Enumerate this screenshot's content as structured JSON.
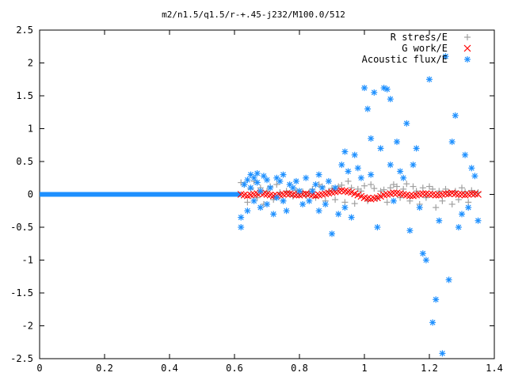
{
  "chart_data": {
    "type": "scatter",
    "title": "m2/n1.5/q1.5/r-+.45-j232/M100.0/512",
    "xlabel": "",
    "ylabel": "",
    "xlim": [
      0,
      1.4
    ],
    "ylim": [
      -2.5,
      2.5
    ],
    "x_ticks": [
      "0",
      "0.2",
      "0.4",
      "0.6",
      "0.8",
      "1",
      "1.2",
      "1.4"
    ],
    "y_ticks": [
      "2.5",
      "2",
      "1.5",
      "1",
      "0.5",
      "0",
      "-0.5",
      "-1",
      "-1.5",
      "-2",
      "-2.5"
    ],
    "grid": false,
    "legend_position": "top-right",
    "series": [
      {
        "name": "R stress/E",
        "marker": "plus",
        "color": "#a0a0a0",
        "x": [
          0.62,
          0.63,
          0.64,
          0.65,
          0.66,
          0.67,
          0.68,
          0.69,
          0.7,
          0.71,
          0.72,
          0.73,
          0.74,
          0.75,
          0.76,
          0.77,
          0.78,
          0.79,
          0.8,
          0.81,
          0.82,
          0.83,
          0.84,
          0.85,
          0.86,
          0.87,
          0.88,
          0.89,
          0.9,
          0.91,
          0.92,
          0.93,
          0.94,
          0.95,
          0.96,
          0.97,
          0.98,
          0.99,
          1.0,
          1.01,
          1.02,
          1.03,
          1.04,
          1.05,
          1.06,
          1.07,
          1.08,
          1.09,
          1.1,
          1.11,
          1.12,
          1.13,
          1.14,
          1.15,
          1.16,
          1.17,
          1.18,
          1.19,
          1.2,
          1.21,
          1.22,
          1.23,
          1.24,
          1.25,
          1.26,
          1.27,
          1.28,
          1.29,
          1.3,
          1.31,
          1.32,
          1.33,
          1.34,
          1.35
        ],
        "y": [
          0.18,
          0.15,
          -0.12,
          0.08,
          0.2,
          -0.05,
          0.1,
          -0.15,
          0.05,
          0.12,
          -0.08,
          0.15,
          0.03,
          -0.1,
          0.05,
          0.02,
          -0.03,
          0.06,
          0.01,
          0.04,
          -0.02,
          0.03,
          0.08,
          -0.05,
          0.15,
          0.12,
          -0.1,
          0.05,
          0.09,
          -0.08,
          0.12,
          0.14,
          -0.12,
          0.2,
          0.1,
          -0.14,
          0.08,
          0.05,
          0.13,
          -0.1,
          0.15,
          0.09,
          -0.06,
          0.05,
          0.07,
          -0.12,
          0.1,
          0.15,
          0.12,
          -0.05,
          0.08,
          0.16,
          -0.1,
          0.12,
          0.05,
          -0.15,
          0.1,
          -0.05,
          0.12,
          0.08,
          -0.2,
          0.05,
          -0.1,
          0.08,
          0.03,
          -0.15,
          0.05,
          -0.08,
          0.1,
          0.04,
          -0.12,
          0.06,
          0.02,
          0.03
        ]
      },
      {
        "name": "G work/E",
        "marker": "cross",
        "color": "#ff0000",
        "x": [
          0.62,
          0.63,
          0.64,
          0.65,
          0.66,
          0.67,
          0.68,
          0.69,
          0.7,
          0.71,
          0.72,
          0.73,
          0.74,
          0.75,
          0.76,
          0.77,
          0.78,
          0.79,
          0.8,
          0.81,
          0.82,
          0.83,
          0.84,
          0.85,
          0.86,
          0.87,
          0.88,
          0.89,
          0.9,
          0.91,
          0.92,
          0.93,
          0.94,
          0.95,
          0.96,
          0.97,
          0.98,
          0.99,
          1.0,
          1.01,
          1.02,
          1.03,
          1.04,
          1.05,
          1.06,
          1.07,
          1.08,
          1.09,
          1.1,
          1.11,
          1.12,
          1.13,
          1.14,
          1.15,
          1.16,
          1.17,
          1.18,
          1.19,
          1.2,
          1.21,
          1.22,
          1.23,
          1.24,
          1.25,
          1.26,
          1.27,
          1.28,
          1.29,
          1.3,
          1.31,
          1.32,
          1.33,
          1.34,
          1.35
        ],
        "y": [
          0.0,
          -0.01,
          -0.02,
          -0.01,
          0.0,
          0.01,
          0.02,
          0.01,
          0.0,
          -0.01,
          -0.02,
          -0.02,
          -0.01,
          0.0,
          0.01,
          0.01,
          0.0,
          -0.01,
          -0.01,
          0.0,
          0.01,
          0.0,
          -0.01,
          -0.02,
          -0.01,
          0.0,
          0.01,
          0.02,
          0.03,
          0.04,
          0.05,
          0.06,
          0.05,
          0.04,
          0.03,
          0.01,
          -0.01,
          -0.03,
          -0.05,
          -0.06,
          -0.07,
          -0.06,
          -0.05,
          -0.03,
          -0.01,
          0.0,
          0.01,
          0.02,
          0.02,
          0.01,
          0.0,
          -0.01,
          -0.02,
          -0.02,
          -0.01,
          0.0,
          0.01,
          0.01,
          0.0,
          0.0,
          -0.01,
          -0.01,
          0.0,
          0.01,
          0.01,
          0.02,
          0.01,
          0.0,
          0.0,
          -0.01,
          0.0,
          0.01,
          0.01,
          0.0
        ]
      },
      {
        "name": "Acoustic flux/E",
        "marker": "star",
        "color": "#1e90ff",
        "x": [
          0.62,
          0.62,
          0.63,
          0.64,
          0.64,
          0.65,
          0.65,
          0.66,
          0.66,
          0.67,
          0.67,
          0.68,
          0.68,
          0.69,
          0.7,
          0.7,
          0.71,
          0.72,
          0.73,
          0.73,
          0.74,
          0.75,
          0.75,
          0.76,
          0.77,
          0.78,
          0.79,
          0.8,
          0.81,
          0.82,
          0.83,
          0.84,
          0.85,
          0.86,
          0.86,
          0.87,
          0.88,
          0.89,
          0.9,
          0.91,
          0.92,
          0.93,
          0.94,
          0.94,
          0.95,
          0.96,
          0.97,
          0.98,
          0.99,
          1.0,
          1.01,
          1.02,
          1.02,
          1.03,
          1.04,
          1.05,
          1.06,
          1.07,
          1.08,
          1.08,
          1.09,
          1.1,
          1.11,
          1.12,
          1.13,
          1.14,
          1.15,
          1.16,
          1.17,
          1.18,
          1.19,
          1.2,
          1.21,
          1.22,
          1.23,
          1.24,
          1.25,
          1.26,
          1.27,
          1.28,
          1.29,
          1.3,
          1.31,
          1.32,
          1.33,
          1.34,
          1.35
        ],
        "y": [
          -0.5,
          -0.35,
          0.15,
          0.22,
          -0.25,
          0.1,
          0.3,
          0.25,
          -0.1,
          0.18,
          0.32,
          -0.2,
          0.05,
          0.28,
          -0.15,
          0.22,
          0.1,
          -0.3,
          0.25,
          -0.05,
          0.2,
          0.3,
          -0.1,
          -0.25,
          0.15,
          0.1,
          0.2,
          0.05,
          -0.15,
          0.25,
          -0.1,
          0.05,
          0.15,
          -0.25,
          0.3,
          0.1,
          -0.15,
          0.2,
          -0.6,
          0.1,
          -0.3,
          0.45,
          -0.2,
          0.65,
          0.35,
          -0.35,
          0.6,
          0.4,
          0.25,
          1.62,
          1.3,
          0.85,
          0.3,
          1.55,
          -0.5,
          0.7,
          1.62,
          1.6,
          0.45,
          1.45,
          -0.1,
          0.8,
          0.35,
          0.25,
          1.08,
          -0.55,
          0.45,
          0.7,
          -0.2,
          -0.9,
          -1.0,
          1.75,
          -1.95,
          -1.6,
          -0.4,
          -2.42,
          2.1,
          -1.3,
          0.8,
          1.2,
          -0.5,
          -0.3,
          0.6,
          -0.2,
          0.4,
          0.28,
          -0.4
        ]
      }
    ]
  }
}
